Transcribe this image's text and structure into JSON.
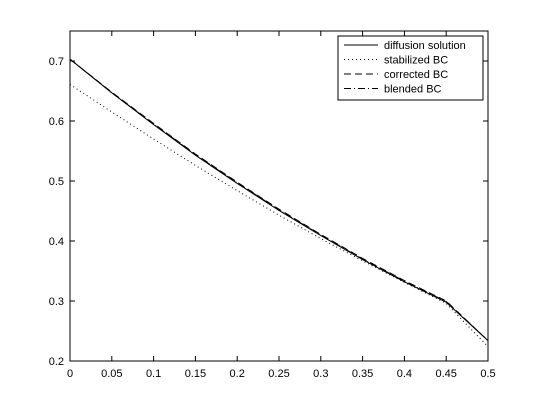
{
  "chart_data": {
    "type": "line",
    "xlim": [
      0,
      0.5
    ],
    "ylim": [
      0.2,
      0.75
    ],
    "x_ticks": [
      0,
      0.05,
      0.1,
      0.15,
      0.2,
      0.25,
      0.3,
      0.35,
      0.4,
      0.45,
      0.5
    ],
    "x_tick_labels": [
      "0",
      "0.05",
      "0.1",
      "0.15",
      "0.2",
      "0.25",
      "0.3",
      "0.35",
      "0.4",
      "0.45",
      "0.5"
    ],
    "y_ticks": [
      0.2,
      0.3,
      0.4,
      0.5,
      0.6,
      0.7
    ],
    "y_tick_labels": [
      "0.2",
      "0.3",
      "0.4",
      "0.5",
      "0.6",
      "0.7"
    ],
    "grid": false,
    "legend_position": "top-right",
    "x": [
      0,
      0.05,
      0.1,
      0.15,
      0.2,
      0.25,
      0.3,
      0.35,
      0.4,
      0.45,
      0.5
    ],
    "series": [
      {
        "name": "diffusion solution",
        "style": "solid",
        "color": "#000000",
        "values": [
          0.703,
          0.647,
          0.594,
          0.543,
          0.496,
          0.451,
          0.409,
          0.369,
          0.332,
          0.298,
          0.234
        ]
      },
      {
        "name": "stabilized BC",
        "style": "dotted",
        "color": "#000000",
        "values": [
          0.661,
          0.615,
          0.57,
          0.526,
          0.484,
          0.443,
          0.404,
          0.367,
          0.331,
          0.296,
          0.224
        ]
      },
      {
        "name": "corrected BC",
        "style": "dashed",
        "color": "#000000",
        "values": [
          0.703,
          0.648,
          0.596,
          0.545,
          0.498,
          0.453,
          0.411,
          0.371,
          0.334,
          0.3,
          0.234
        ]
      },
      {
        "name": "blended BC",
        "style": "dashdot",
        "color": "#000000",
        "values": [
          0.703,
          0.647,
          0.595,
          0.544,
          0.497,
          0.452,
          0.41,
          0.37,
          0.333,
          0.299,
          0.234
        ]
      }
    ]
  }
}
